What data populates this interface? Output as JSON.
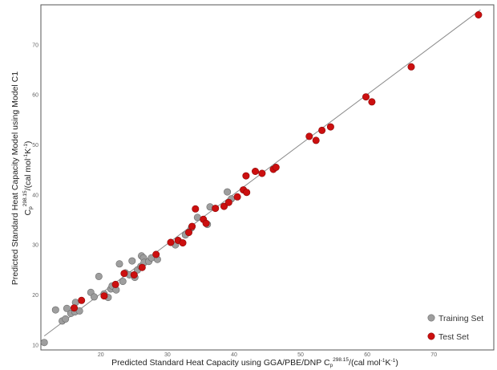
{
  "chart_data": {
    "type": "scatter",
    "xlabel": {
      "main": "Predicted Standard Heat Capacity using GGA/PBE/DNP C",
      "sub": "p",
      "sup": "298.15",
      "unit_start": "/(cal mol",
      "unit_exp": "-1",
      "unit_mid": "K",
      "unit_end": ")"
    },
    "ylabel": {
      "line1": "Predicted Standard Heat Capacity Model using Model C1",
      "line2_main": "C",
      "line2_sub": "p",
      "line2_sup": "298.15",
      "line2_unit_start": "/(cal mol",
      "line2_unit_exp": "-1",
      "line2_unit_mid": "K",
      "line2_unit_end": ")"
    },
    "x_ticks": [
      "20",
      "30",
      "40",
      "50",
      "60",
      "70"
    ],
    "y_ticks": [
      "10",
      "20",
      "30",
      "40",
      "50",
      "60",
      "70"
    ],
    "xlim": [
      11,
      79
    ],
    "ylim": [
      9,
      78
    ],
    "grid": false,
    "legend_position": "bottom-right",
    "fit_line": {
      "x": [
        11.5,
        77
      ],
      "y": [
        11.8,
        77
      ]
    },
    "series": [
      {
        "name": "Training Set",
        "color": "#9e9e9e",
        "points": [
          [
            11.5,
            10.5
          ],
          [
            13.2,
            17.0
          ],
          [
            14.2,
            14.8
          ],
          [
            14.7,
            15.2
          ],
          [
            14.9,
            17.3
          ],
          [
            15.5,
            16.3
          ],
          [
            16.1,
            16.6
          ],
          [
            16.2,
            18.5
          ],
          [
            16.8,
            16.8
          ],
          [
            18.5,
            20.5
          ],
          [
            19.0,
            19.6
          ],
          [
            19.7,
            23.7
          ],
          [
            20.5,
            20.2
          ],
          [
            21.1,
            19.5
          ],
          [
            21.5,
            21.2
          ],
          [
            21.7,
            21.8
          ],
          [
            22.3,
            21.0
          ],
          [
            22.8,
            26.2
          ],
          [
            23.3,
            22.7
          ],
          [
            23.7,
            24.4
          ],
          [
            24.3,
            24.0
          ],
          [
            24.7,
            26.8
          ],
          [
            25.1,
            23.5
          ],
          [
            25.5,
            25.0
          ],
          [
            26.0,
            25.7
          ],
          [
            26.1,
            27.8
          ],
          [
            26.4,
            27.4
          ],
          [
            26.5,
            26.5
          ],
          [
            27.2,
            26.7
          ],
          [
            27.6,
            27.4
          ],
          [
            28.5,
            27.1
          ],
          [
            31.2,
            30.0
          ],
          [
            32.7,
            32.0
          ],
          [
            33.6,
            33.4
          ],
          [
            34.5,
            35.5
          ],
          [
            36.0,
            34.1
          ],
          [
            36.4,
            37.6
          ],
          [
            39.0,
            40.6
          ],
          [
            39.6,
            39.2
          ]
        ]
      },
      {
        "name": "Test Set",
        "color": "#cc0f0f",
        "points": [
          [
            16.0,
            17.4
          ],
          [
            17.1,
            18.9
          ],
          [
            20.5,
            19.8
          ],
          [
            22.2,
            22.1
          ],
          [
            23.5,
            24.3
          ],
          [
            25.0,
            24.0
          ],
          [
            26.2,
            25.5
          ],
          [
            28.3,
            28.1
          ],
          [
            30.5,
            30.5
          ],
          [
            31.6,
            30.9
          ],
          [
            32.3,
            30.4
          ],
          [
            33.2,
            32.5
          ],
          [
            33.7,
            33.7
          ],
          [
            34.2,
            37.2
          ],
          [
            35.4,
            35.1
          ],
          [
            35.8,
            34.3
          ],
          [
            37.2,
            37.3
          ],
          [
            38.5,
            37.7
          ],
          [
            39.2,
            38.5
          ],
          [
            40.5,
            39.6
          ],
          [
            41.4,
            41.0
          ],
          [
            41.8,
            43.8
          ],
          [
            41.9,
            40.5
          ],
          [
            43.2,
            44.7
          ],
          [
            44.2,
            44.3
          ],
          [
            45.9,
            45.1
          ],
          [
            46.3,
            45.5
          ],
          [
            51.3,
            51.7
          ],
          [
            52.3,
            50.9
          ],
          [
            53.2,
            52.9
          ],
          [
            54.5,
            53.6
          ],
          [
            59.8,
            59.6
          ],
          [
            60.7,
            58.6
          ],
          [
            66.6,
            65.6
          ],
          [
            76.7,
            76.0
          ]
        ]
      }
    ]
  }
}
